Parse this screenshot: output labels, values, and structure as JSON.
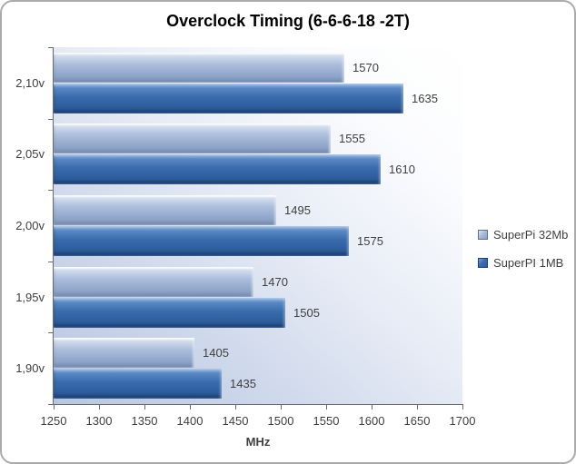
{
  "chart_data": {
    "type": "bar",
    "orientation": "horizontal",
    "title": "Overclock Timing (6-6-6-18 -2T)",
    "xlabel": "MHz",
    "xlim": [
      1250,
      1700
    ],
    "xticks": [
      1250,
      1300,
      1350,
      1400,
      1450,
      1500,
      1550,
      1600,
      1650,
      1700
    ],
    "categories": [
      "2,10v",
      "2,05v",
      "2,00v",
      "1,95v",
      "1,90v"
    ],
    "series": [
      {
        "name": "SuperPi 32Mb",
        "color": "#9fb4d6",
        "values": [
          1570,
          1555,
          1495,
          1470,
          1405
        ]
      },
      {
        "name": "SuperPI 1MB",
        "color": "#3a6cae",
        "values": [
          1635,
          1610,
          1575,
          1505,
          1435
        ]
      }
    ],
    "data_labels": true,
    "legend_position": "right",
    "plot_background": "gradient #b7c6e2 to #ffffff",
    "axis_color": "#6a6a6a",
    "label_color": "#3f3f3f"
  }
}
